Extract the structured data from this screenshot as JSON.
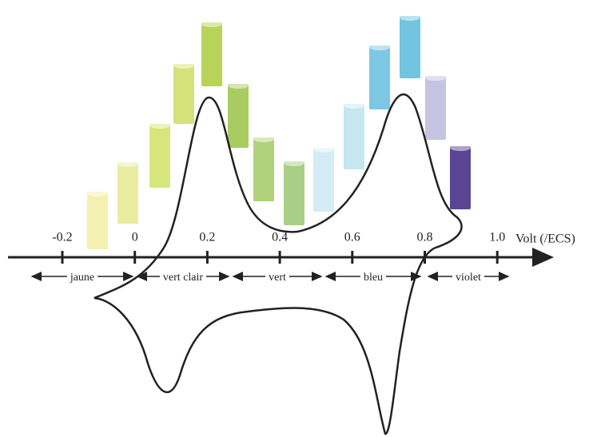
{
  "axis": {
    "label": "Volt (/ECS)",
    "ticks": [
      "-0.2",
      "0",
      "0.2",
      "0.4",
      "0.6",
      "0.8",
      "1.0"
    ]
  },
  "ranges": [
    "jaune",
    "vert clair",
    "vert",
    "bleu",
    "violet"
  ]
}
